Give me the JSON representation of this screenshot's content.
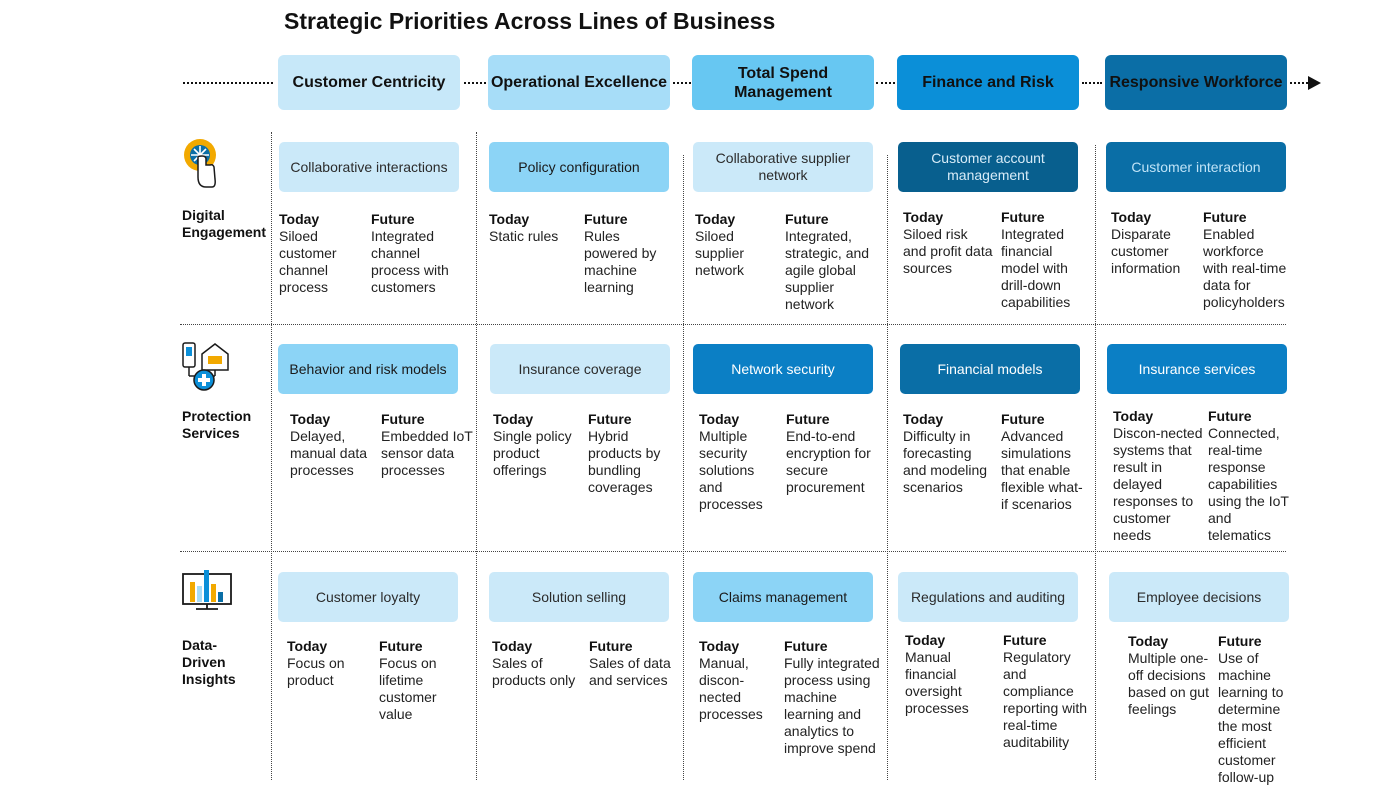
{
  "title": "Strategic Priorities Across Lines of Business",
  "headers": [
    "Customer Centricity",
    "Operational Excellence",
    "Total Spend Management",
    "Finance and Risk",
    "Responsive Workforce"
  ],
  "rows": [
    {
      "label": "Digital Engagement",
      "icon": "touch-icon",
      "cells": [
        {
          "title": "Collaborative interactions",
          "today_label": "Today",
          "today": "Siloed customer channel process",
          "future_label": "Future",
          "future": "Integrated channel process with customers"
        },
        {
          "title": "Policy configuration",
          "today_label": "Today",
          "today": "Static rules",
          "future_label": "Future",
          "future": "Rules powered by machine learning"
        },
        {
          "title": "Collaborative supplier network",
          "today_label": "Today",
          "today": "Siloed supplier network",
          "future_label": "Future",
          "future": "Integrated, strategic, and agile global supplier network"
        },
        {
          "title": "Customer account management",
          "today_label": "Today",
          "today": "Siloed risk and profit data sources",
          "future_label": "Future",
          "future": "Integrated financial model with drill-down capabilities"
        },
        {
          "title": "Customer interaction",
          "today_label": "Today",
          "today": "Disparate customer information",
          "future_label": "Future",
          "future": "Enabled workforce with real-time data for policyholders"
        }
      ]
    },
    {
      "label": "Protection Services",
      "icon": "protection-icon",
      "cells": [
        {
          "title": "Behavior and risk models",
          "today_label": "Today",
          "today": "Delayed, manual data processes",
          "future_label": "Future",
          "future": "Embedded IoT sensor data processes"
        },
        {
          "title": "Insurance coverage",
          "today_label": "Today",
          "today": "Single policy product offerings",
          "future_label": "Future",
          "future": "Hybrid products by bundling coverages"
        },
        {
          "title": "Network security",
          "today_label": "Today",
          "today": "Multiple security solutions and processes",
          "future_label": "Future",
          "future": "End-to-end encryption for secure procurement"
        },
        {
          "title": "Financial models",
          "today_label": "Today",
          "today": "Difficulty in forecasting and modeling scenarios",
          "future_label": "Future",
          "future": "Advanced simulations that enable flexible what-if scenarios"
        },
        {
          "title": "Insurance services",
          "today_label": "Today",
          "today": "Discon-nected systems that result in delayed responses to customer needs",
          "future_label": "Future",
          "future": "Connected, real-time response capabilities using the IoT and telematics"
        }
      ]
    },
    {
      "label": "Data-Driven Insights",
      "icon": "monitor-chart-icon",
      "cells": [
        {
          "title": "Customer loyalty",
          "today_label": "Today",
          "today": "Focus on product",
          "future_label": "Future",
          "future": "Focus on lifetime customer value"
        },
        {
          "title": "Solution selling",
          "today_label": "Today",
          "today": "Sales of products only",
          "future_label": "Future",
          "future": "Sales of data and services"
        },
        {
          "title": "Claims management",
          "today_label": "Today",
          "today": "Manual, discon-nected processes",
          "future_label": "Future",
          "future": "Fully integrated process using machine learning and analytics to improve spend"
        },
        {
          "title": "Regulations and auditing",
          "today_label": "Today",
          "today": "Manual financial oversight processes",
          "future_label": "Future",
          "future": "Regulatory and compliance reporting with real-time auditability"
        },
        {
          "title": "Employee decisions",
          "today_label": "Today",
          "today": "Multiple one-off decisions based on gut feelings",
          "future_label": "Future",
          "future": "Use of machine learning to determine the most efficient customer follow-up"
        }
      ]
    }
  ],
  "colors": {
    "lightest": "#cbe9f9",
    "light": "#8cd4f6",
    "medium": "#0b7fc5",
    "dark": "#0a6ea6",
    "darkest": "#085f8e"
  }
}
